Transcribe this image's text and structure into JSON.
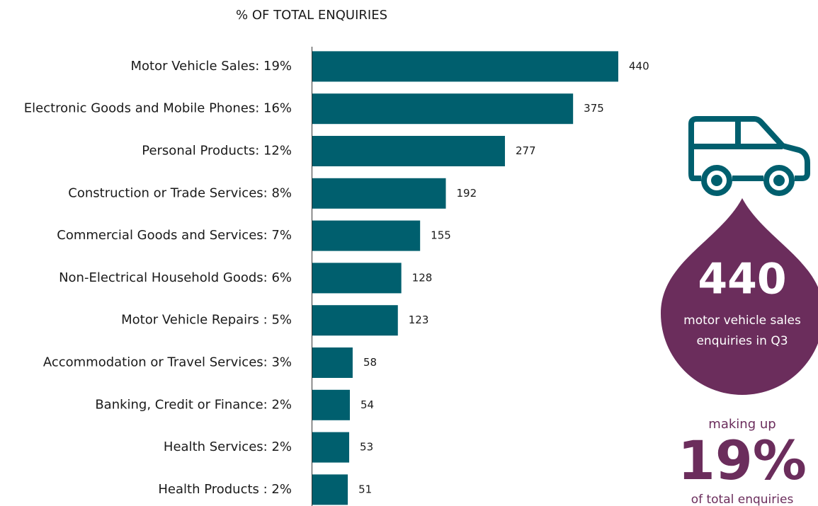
{
  "chart_data": {
    "type": "bar",
    "orientation": "horizontal",
    "title": "% OF TOTAL ENQUIRIES",
    "categories": [
      "Motor Vehicle Sales: 19%",
      "Electronic Goods and Mobile Phones: 16%",
      "Personal Products: 12%",
      "Construction or Trade Services: 8%",
      "Commercial Goods and Services: 7%",
      "Non-Electrical Household Goods: 6%",
      "Motor Vehicle Repairs : 5%",
      "Accommodation or Travel Services: 3%",
      "Banking, Credit or Finance: 2%",
      "Health Services: 2%",
      "Health Products : 2%"
    ],
    "values": [
      440,
      375,
      277,
      192,
      155,
      128,
      123,
      58,
      54,
      53,
      51
    ],
    "color": "#005f6e"
  },
  "callout": {
    "value": "440",
    "line1": "motor vehicle sales",
    "line2": "enquiries in Q3",
    "prefix": "making up",
    "share": "19%",
    "suffix": "of total enquiries",
    "color": "#6b2d5c"
  }
}
